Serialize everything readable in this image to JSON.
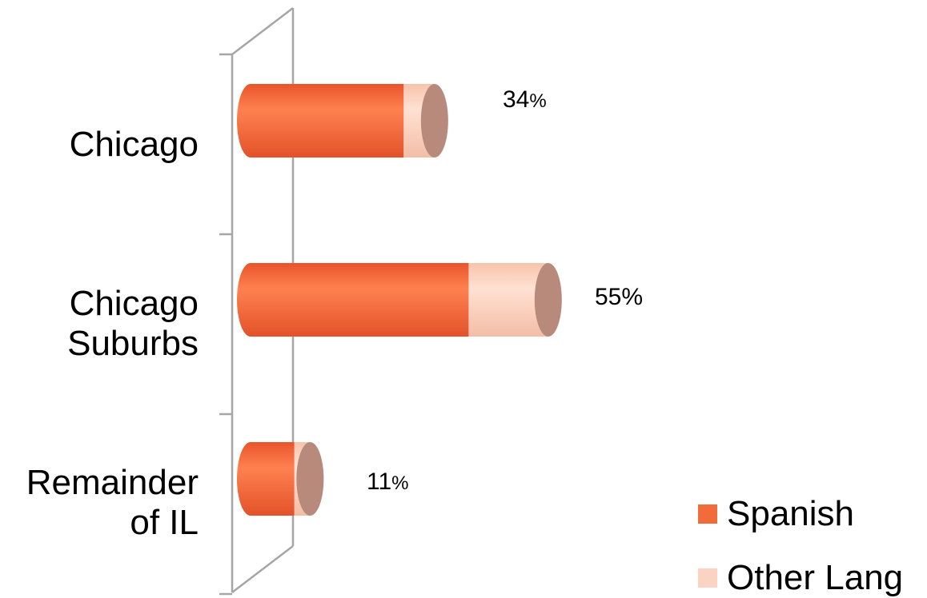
{
  "chart_data": {
    "type": "bar",
    "orientation": "horizontal",
    "stacked": true,
    "style": "3d-cylinder",
    "categories": [
      "Chicago",
      "Chicago Suburbs",
      "Remainder of IL"
    ],
    "category_lines": [
      [
        "Chicago"
      ],
      [
        "Chicago",
        "Suburbs"
      ],
      [
        "Remainder",
        "of IL"
      ]
    ],
    "series": [
      {
        "name": "Spanish",
        "color": "#f26b3a",
        "values": [
          28.3,
          40.3,
          8.1
        ]
      },
      {
        "name": "Other Lang",
        "color": "#fbd3c3",
        "values": [
          5.7,
          14.7,
          2.9
        ]
      }
    ],
    "totals": [
      34,
      55,
      11
    ],
    "data_labels": [
      {
        "number": "34",
        "unit": "%"
      },
      {
        "number": "55%",
        "unit": ""
      },
      {
        "number": "11",
        "unit": "%"
      }
    ],
    "xlim": [
      0,
      100
    ],
    "grid": false,
    "legend_position": "bottom-right"
  }
}
